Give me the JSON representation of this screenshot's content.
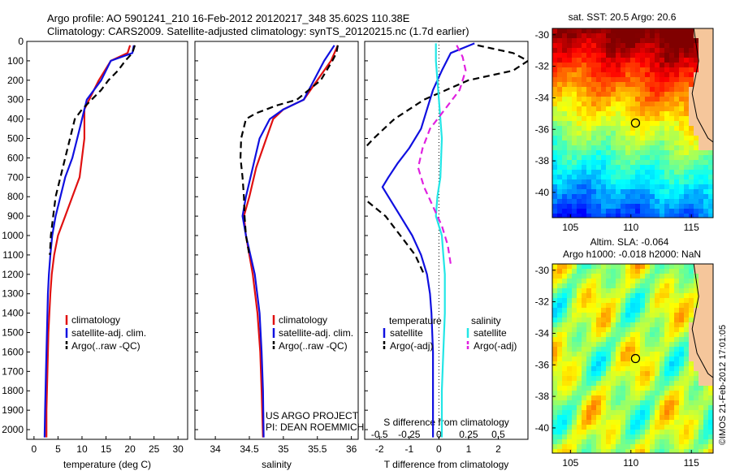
{
  "header": {
    "line1": "Argo profile: AO 5901241_210 16-Feb-2012 20120217_348 35.602S 110.38E",
    "line2": "Climatology: CARS2009. Satellite-adjusted climatology: synTS_20120215.nc (1.7d earlier)"
  },
  "colors": {
    "red": "#e01010",
    "blue": "#1010e0",
    "black": "#000000",
    "cyan": "#22e6e6",
    "magenta": "#e020e0"
  },
  "chart_data": [
    {
      "type": "line",
      "id": "temperature",
      "xlabel": "temperature (deg C)",
      "xlim": [
        -1.5,
        32
      ],
      "xticks": [
        0,
        5,
        10,
        15,
        20,
        25,
        30
      ],
      "ylim": [
        0,
        2050
      ],
      "yticks": [
        0,
        100,
        200,
        300,
        400,
        500,
        600,
        700,
        800,
        900,
        1000,
        1100,
        1200,
        1300,
        1400,
        1500,
        1600,
        1700,
        1800,
        1900,
        2000
      ],
      "legend": [
        "climatology",
        "satellite-adj. clim.",
        "Argo(..raw -QC)"
      ],
      "series": [
        {
          "color": "red",
          "dash": false,
          "points": [
            [
              20,
              20
            ],
            [
              19.5,
              60
            ],
            [
              16,
              100
            ],
            [
              13.5,
              200
            ],
            [
              12.5,
              250
            ],
            [
              11.5,
              300
            ],
            [
              10.5,
              350
            ],
            [
              10.5,
              400
            ],
            [
              10.5,
              500
            ],
            [
              9.5,
              700
            ],
            [
              8,
              800
            ],
            [
              6.5,
              900
            ],
            [
              5,
              1000
            ],
            [
              4.2,
              1100
            ],
            [
              3.7,
              1200
            ],
            [
              3.4,
              1300
            ],
            [
              3.2,
              1400
            ],
            [
              3,
              1500
            ],
            [
              2.8,
              1700
            ],
            [
              2.6,
              1900
            ],
            [
              2.6,
              2040
            ]
          ]
        },
        {
          "color": "blue",
          "dash": false,
          "points": [
            [
              20.8,
              20
            ],
            [
              20.5,
              60
            ],
            [
              16,
              100
            ],
            [
              14,
              200
            ],
            [
              12.5,
              250
            ],
            [
              11,
              300
            ],
            [
              10.5,
              350
            ],
            [
              10,
              400
            ],
            [
              9,
              500
            ],
            [
              8,
              600
            ],
            [
              6.5,
              700
            ],
            [
              5.5,
              800
            ],
            [
              4.5,
              900
            ],
            [
              3.8,
              1000
            ],
            [
              3.4,
              1100
            ],
            [
              3.1,
              1200
            ],
            [
              2.9,
              1300
            ],
            [
              2.7,
              1500
            ],
            [
              2.5,
              1700
            ],
            [
              2.3,
              1900
            ],
            [
              2.2,
              2040
            ]
          ]
        },
        {
          "color": "black",
          "dash": true,
          "points": [
            [
              21,
              20
            ],
            [
              20.5,
              60
            ],
            [
              19,
              100
            ],
            [
              17.5,
              150
            ],
            [
              15.5,
              200
            ],
            [
              14,
              250
            ],
            [
              12,
              300
            ],
            [
              10,
              350
            ],
            [
              8.5,
              400
            ],
            [
              7.5,
              500
            ],
            [
              6.5,
              600
            ],
            [
              5.5,
              700
            ],
            [
              4.5,
              800
            ],
            [
              4,
              900
            ],
            [
              3.5,
              1000
            ],
            [
              3.3,
              1100
            ]
          ]
        }
      ]
    },
    {
      "type": "line",
      "id": "salinity",
      "xlabel": "salinity",
      "xlim": [
        33.7,
        36.1
      ],
      "xticks": [
        34,
        34.5,
        35,
        35.5,
        36
      ],
      "ylim": [
        0,
        2050
      ],
      "legend": [
        "climatology",
        "satellite-adj. clim.",
        "Argo(..raw -QC)"
      ],
      "annotations": [
        "US ARGO PROJECT",
        "PI: DEAN ROEMMICH"
      ],
      "series": [
        {
          "color": "red",
          "dash": false,
          "points": [
            [
              35.8,
              20
            ],
            [
              35.7,
              100
            ],
            [
              35.5,
              200
            ],
            [
              35.3,
              300
            ],
            [
              35.0,
              350
            ],
            [
              34.85,
              400
            ],
            [
              34.75,
              500
            ],
            [
              34.6,
              650
            ],
            [
              34.5,
              800
            ],
            [
              34.42,
              900
            ],
            [
              34.45,
              1000
            ],
            [
              34.55,
              1200
            ],
            [
              34.62,
              1400
            ],
            [
              34.66,
              1600
            ],
            [
              34.68,
              1800
            ],
            [
              34.7,
              2040
            ]
          ]
        },
        {
          "color": "blue",
          "dash": false,
          "points": [
            [
              35.75,
              20
            ],
            [
              35.6,
              100
            ],
            [
              35.45,
              200
            ],
            [
              35.3,
              300
            ],
            [
              35.0,
              350
            ],
            [
              34.8,
              400
            ],
            [
              34.65,
              500
            ],
            [
              34.55,
              650
            ],
            [
              34.45,
              800
            ],
            [
              34.4,
              900
            ],
            [
              34.45,
              1000
            ],
            [
              34.58,
              1200
            ],
            [
              34.65,
              1400
            ],
            [
              34.68,
              1600
            ],
            [
              34.7,
              1800
            ],
            [
              34.71,
              2040
            ]
          ]
        },
        {
          "color": "black",
          "dash": true,
          "points": [
            [
              35.8,
              20
            ],
            [
              35.78,
              60
            ],
            [
              35.72,
              100
            ],
            [
              35.55,
              200
            ],
            [
              35.2,
              300
            ],
            [
              34.9,
              330
            ],
            [
              34.6,
              370
            ],
            [
              34.45,
              400
            ],
            [
              34.38,
              500
            ],
            [
              34.37,
              600
            ],
            [
              34.4,
              700
            ],
            [
              34.42,
              800
            ],
            [
              34.43,
              900
            ],
            [
              34.45,
              1000
            ],
            [
              34.5,
              1100
            ]
          ]
        }
      ]
    },
    {
      "type": "line",
      "id": "difference",
      "xlabel": "T difference from climatology",
      "xlim": [
        -2.5,
        3.0
      ],
      "xticks": [
        -2,
        -1,
        0,
        1,
        2
      ],
      "top_xlabel": "S difference from climatology",
      "top_xticks": [
        "-0.5",
        "-0.25",
        "0",
        "0.25",
        "0.5"
      ],
      "ylim": [
        0,
        2050
      ],
      "legend": [
        "temperature",
        "satellite",
        "Argo(-adj)",
        "salinity",
        "satellite",
        "Argo(-adj)"
      ],
      "series": [
        {
          "color": "blue",
          "dash": false,
          "points": [
            [
              1.2,
              10
            ],
            [
              0.4,
              60
            ],
            [
              0.1,
              150
            ],
            [
              -0.2,
              250
            ],
            [
              -0.4,
              350
            ],
            [
              -0.6,
              450
            ],
            [
              -1.0,
              550
            ],
            [
              -1.4,
              630
            ],
            [
              -1.7,
              700
            ],
            [
              -1.9,
              750
            ],
            [
              -1.7,
              800
            ],
            [
              -1.3,
              900
            ],
            [
              -0.9,
              1000
            ],
            [
              -0.6,
              1100
            ],
            [
              -0.4,
              1200
            ],
            [
              -0.3,
              1300
            ],
            [
              -0.25,
              1400
            ],
            [
              -0.2,
              1600
            ],
            [
              -0.2,
              2040
            ]
          ]
        },
        {
          "color": "black",
          "dash": true,
          "points": [
            [
              1.3,
              20
            ],
            [
              2.5,
              60
            ],
            [
              3.0,
              100
            ],
            [
              2.5,
              150
            ],
            [
              1.0,
              200
            ],
            [
              -0.5,
              300
            ],
            [
              -1.5,
              400
            ],
            [
              -2.2,
              500
            ],
            [
              -2.8,
              600
            ],
            [
              -3.0,
              700
            ],
            [
              -2.6,
              800
            ],
            [
              -1.8,
              900
            ],
            [
              -1.3,
              1000
            ],
            [
              -0.8,
              1100
            ],
            [
              -0.5,
              1200
            ]
          ]
        },
        {
          "color": "cyan",
          "dash": false,
          "points": [
            [
              -0.1,
              10
            ],
            [
              -0.1,
              100
            ],
            [
              0.0,
              300
            ],
            [
              0.1,
              500
            ],
            [
              0.05,
              700
            ],
            [
              -0.05,
              800
            ],
            [
              -0.1,
              900
            ],
            [
              0.1,
              1000
            ],
            [
              0.15,
              1100
            ],
            [
              0.2,
              1200
            ],
            [
              0.2,
              1400
            ],
            [
              0.15,
              1600
            ],
            [
              0.1,
              1800
            ],
            [
              0.1,
              2040
            ]
          ]
        },
        {
          "color": "magenta",
          "dash": true,
          "points": [
            [
              0.6,
              20
            ],
            [
              0.8,
              80
            ],
            [
              0.9,
              150
            ],
            [
              0.7,
              250
            ],
            [
              0.2,
              350
            ],
            [
              -0.3,
              450
            ],
            [
              -0.55,
              550
            ],
            [
              -0.7,
              650
            ],
            [
              -0.5,
              750
            ],
            [
              -0.2,
              850
            ],
            [
              0.1,
              950
            ],
            [
              0.3,
              1050
            ],
            [
              0.4,
              1150
            ]
          ]
        }
      ]
    }
  ],
  "maps": [
    {
      "title": "sat. SST: 20.5 Argo: 20.6",
      "xticks": [
        "105",
        "110",
        "115"
      ],
      "yticks": [
        "-30",
        "-32",
        "-34",
        "-36",
        "-38",
        "-40"
      ],
      "marker_lon": 110.38,
      "marker_lat": -35.6
    },
    {
      "title1": "Altim. SLA: -0.064",
      "title2": "Argo h1000: -0.018 h2000: NaN",
      "xticks": [
        "105",
        "110",
        "115"
      ],
      "yticks": [
        "-30",
        "-32",
        "-34",
        "-36",
        "-38",
        "-40"
      ],
      "marker_lon": 110.38,
      "marker_lat": -35.6
    }
  ],
  "credit": "©IMOS 21-Feb-2012 17:01:05"
}
